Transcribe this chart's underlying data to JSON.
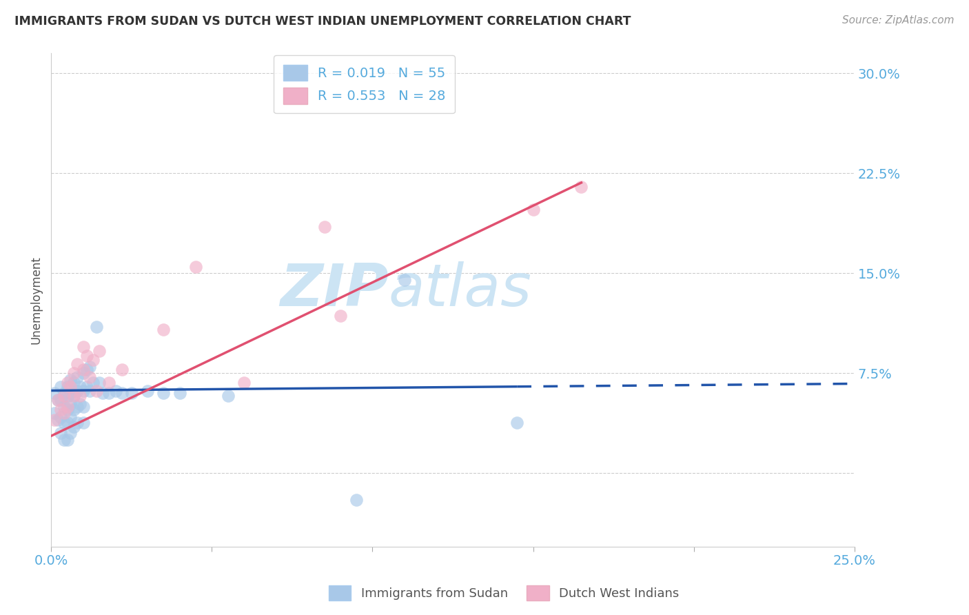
{
  "title": "IMMIGRANTS FROM SUDAN VS DUTCH WEST INDIAN UNEMPLOYMENT CORRELATION CHART",
  "source": "Source: ZipAtlas.com",
  "ylabel": "Unemployment",
  "yticks": [
    0.0,
    0.075,
    0.15,
    0.225,
    0.3
  ],
  "ytick_labels": [
    "",
    "7.5%",
    "15.0%",
    "22.5%",
    "30.0%"
  ],
  "xmin": 0.0,
  "xmax": 0.25,
  "ymin": -0.055,
  "ymax": 0.315,
  "legend1_label": "Immigrants from Sudan",
  "legend2_label": "Dutch West Indians",
  "sudan_color": "#a8c8e8",
  "dutch_color": "#f0b0c8",
  "sudan_line_color": "#2255aa",
  "dutch_line_color": "#e05070",
  "title_color": "#333333",
  "axis_label_color": "#55aadd",
  "watermark_color": "#cce4f4",
  "sudan_points_x": [
    0.001,
    0.001,
    0.002,
    0.002,
    0.003,
    0.003,
    0.003,
    0.003,
    0.004,
    0.004,
    0.004,
    0.004,
    0.005,
    0.005,
    0.005,
    0.005,
    0.005,
    0.006,
    0.006,
    0.006,
    0.006,
    0.006,
    0.007,
    0.007,
    0.007,
    0.007,
    0.008,
    0.008,
    0.008,
    0.008,
    0.009,
    0.009,
    0.01,
    0.01,
    0.01,
    0.01,
    0.011,
    0.011,
    0.012,
    0.012,
    0.013,
    0.014,
    0.015,
    0.016,
    0.018,
    0.02,
    0.022,
    0.025,
    0.03,
    0.035,
    0.04,
    0.055,
    0.095,
    0.11,
    0.145
  ],
  "sudan_points_y": [
    0.06,
    0.045,
    0.055,
    0.04,
    0.065,
    0.055,
    0.042,
    0.03,
    0.06,
    0.05,
    0.038,
    0.025,
    0.065,
    0.058,
    0.048,
    0.038,
    0.025,
    0.07,
    0.06,
    0.052,
    0.042,
    0.03,
    0.068,
    0.058,
    0.048,
    0.035,
    0.072,
    0.062,
    0.05,
    0.038,
    0.065,
    0.052,
    0.075,
    0.062,
    0.05,
    0.038,
    0.078,
    0.065,
    0.08,
    0.062,
    0.068,
    0.11,
    0.068,
    0.06,
    0.06,
    0.062,
    0.06,
    0.06,
    0.062,
    0.06,
    0.06,
    0.058,
    -0.02,
    0.145,
    0.038
  ],
  "dutch_points_x": [
    0.001,
    0.002,
    0.003,
    0.004,
    0.004,
    0.005,
    0.005,
    0.006,
    0.007,
    0.007,
    0.008,
    0.009,
    0.01,
    0.01,
    0.011,
    0.012,
    0.013,
    0.014,
    0.015,
    0.018,
    0.022,
    0.035,
    0.045,
    0.06,
    0.085,
    0.09,
    0.15,
    0.165
  ],
  "dutch_points_y": [
    0.04,
    0.055,
    0.048,
    0.058,
    0.045,
    0.068,
    0.05,
    0.065,
    0.075,
    0.058,
    0.082,
    0.058,
    0.095,
    0.078,
    0.088,
    0.072,
    0.085,
    0.062,
    0.092,
    0.068,
    0.078,
    0.108,
    0.155,
    0.068,
    0.185,
    0.118,
    0.198,
    0.215
  ],
  "sudan_trend_start_x": 0.0,
  "sudan_trend_end_solid_x": 0.145,
  "sudan_trend_end_x": 0.25,
  "sudan_trend_start_y": 0.062,
  "sudan_trend_end_y": 0.065,
  "dutch_trend_start_x": 0.0,
  "dutch_trend_end_x": 0.165,
  "dutch_trend_start_y": 0.028,
  "dutch_trend_end_y": 0.218
}
